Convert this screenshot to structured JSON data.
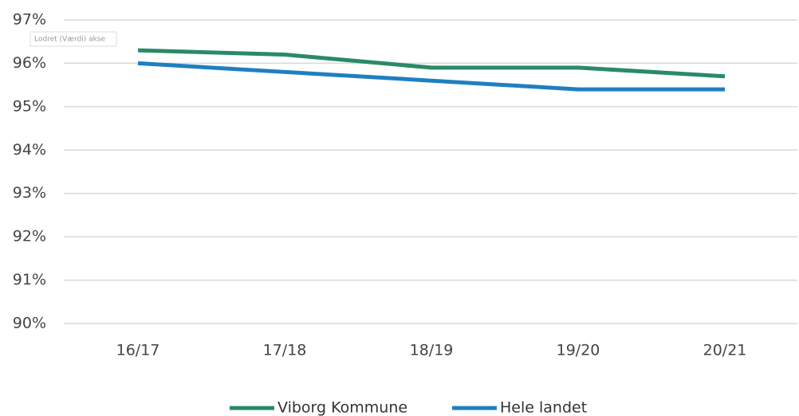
{
  "chart_data": {
    "type": "line",
    "annotation": "Lodret (Værdi) akse",
    "categories": [
      "16/17",
      "17/18",
      "18/19",
      "19/20",
      "20/21"
    ],
    "series": [
      {
        "name": "Viborg Kommune",
        "color": "#2a8a68",
        "values": [
          96.3,
          96.2,
          95.9,
          95.9,
          95.7
        ]
      },
      {
        "name": "Hele landet",
        "color": "#1f7fc1",
        "values": [
          96.0,
          95.8,
          95.6,
          95.4,
          95.4
        ]
      }
    ],
    "ylim": [
      90,
      97
    ],
    "yticks": [
      {
        "value": 90,
        "label": "90%"
      },
      {
        "value": 91,
        "label": "91%"
      },
      {
        "value": 92,
        "label": "92%"
      },
      {
        "value": 93,
        "label": "93%"
      },
      {
        "value": 94,
        "label": "94%"
      },
      {
        "value": 95,
        "label": "95%"
      },
      {
        "value": 96,
        "label": "96%"
      },
      {
        "value": 97,
        "label": "97%"
      }
    ],
    "grid": true,
    "legend": "bottom"
  }
}
